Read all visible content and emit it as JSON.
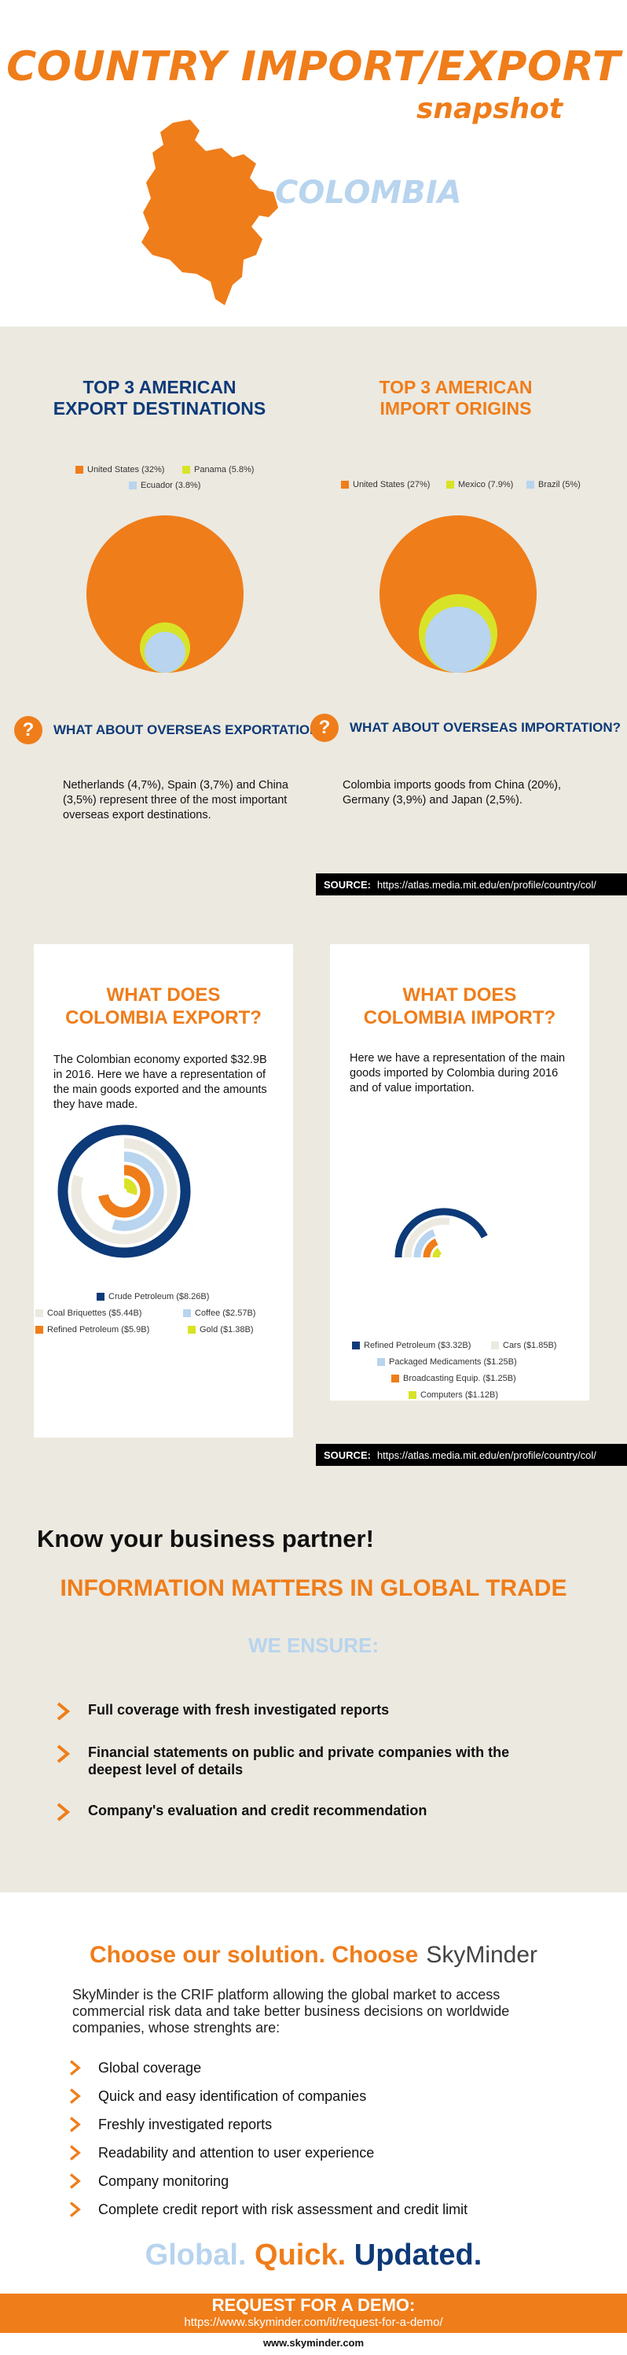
{
  "header": {
    "title": "COUNTRY IMPORT/EXPORT",
    "subtitle": "snapshot",
    "country": "COLOMBIA"
  },
  "export_destinations": {
    "title_line1": "TOP 3 AMERICAN",
    "title_line2": "EXPORT DESTINATIONS",
    "legend": [
      {
        "label": "United States (32%)",
        "color": "#ef7d1a"
      },
      {
        "label": "Panama (5.8%)",
        "color": "#d8e327"
      },
      {
        "label": "Ecuador (3.8%)",
        "color": "#b8d4ee"
      }
    ],
    "question": "WHAT ABOUT OVERSEAS EXPORTATION?",
    "note": "Netherlands (4,7%), Spain (3,7%) and China (3,5%) represent three of the most important overseas export destinations."
  },
  "import_origins": {
    "title_line1": "TOP 3 AMERICAN",
    "title_line2": "IMPORT ORIGINS",
    "legend": [
      {
        "label": "United States (27%)",
        "color": "#ef7d1a"
      },
      {
        "label": "Mexico (7.9%)",
        "color": "#d8e327"
      },
      {
        "label": "Brazil (5%)",
        "color": "#b8d4ee"
      }
    ],
    "question": "WHAT ABOUT OVERSEAS IMPORTATION?",
    "note": "Colombia imports goods from China (20%), Germany (3,9%) and Japan (2,5%)."
  },
  "source": {
    "label": "SOURCE:",
    "url": "https://atlas.media.mit.edu/en/profile/country/col/"
  },
  "export_card": {
    "title_line1": "WHAT DOES",
    "title_line2": "COLOMBIA EXPORT?",
    "text": "The Colombian economy exported $32.9B in 2016. Here we have a representation of the main goods exported and the amounts they have made.",
    "legend": [
      {
        "label": "Crude Petroleum ($8.26B)",
        "color": "#0d3a78"
      },
      {
        "label": "Coal Briquettes ($5.44B)",
        "color": "#ece9e0"
      },
      {
        "label": "Coffee ($2.57B)",
        "color": "#b8d4ee"
      },
      {
        "label": "Refined Petroleum ($5.9B)",
        "color": "#ef7d1a"
      },
      {
        "label": "Gold ($1.38B)",
        "color": "#d8e327"
      }
    ]
  },
  "import_card": {
    "title_line1": "WHAT DOES",
    "title_line2": "COLOMBIA IMPORT?",
    "text": "Here we have a representation of the main goods imported by Colombia during 2016 and of value importation.",
    "legend": [
      {
        "label": "Refined Petroleum ($3.32B)",
        "color": "#0d3a78"
      },
      {
        "label": "Cars ($1.85B)",
        "color": "#ece9e0"
      },
      {
        "label": "Packaged Medicaments ($1.25B)",
        "color": "#b8d4ee"
      },
      {
        "label": "Broadcasting Equip. ($1.25B)",
        "color": "#ef7d1a"
      },
      {
        "label": "Computers ($1.12B)",
        "color": "#d8e327"
      }
    ]
  },
  "partner": {
    "heading": "Know your business partner!",
    "subheading": "INFORMATION MATTERS IN GLOBAL TRADE",
    "ensure": "WE ENSURE:",
    "bullets": [
      "Full coverage with fresh investigated reports",
      "Financial statements on public and private companies with the deepest level of details",
      "Company's evaluation and credit recommendation"
    ]
  },
  "solution": {
    "heading": "Choose our solution. Choose",
    "brand": "SkyMinder",
    "paragraph": "SkyMinder is the CRIF platform allowing the global market to access commercial risk data and take better business decisions on worldwide companies, whose strenghts are:",
    "items": [
      "Global coverage",
      "Quick and easy identification of companies",
      "Freshly investigated reports",
      "Readability and attention to user experience",
      "Company monitoring",
      "Complete credit report with risk assessment and credit limit"
    ],
    "tagline": [
      "Global.",
      "Quick.",
      "Updated."
    ]
  },
  "demo": {
    "title": "REQUEST FOR A DEMO:",
    "url": "https://www.skyminder.com/it/request-for-a-demo/"
  },
  "footer": "www.skyminder.com",
  "colors": {
    "orange": "#ef7d1a",
    "navy": "#0d3a78",
    "light_blue": "#b8d4ee",
    "yellow": "#d8e327",
    "beige": "#ece9e0"
  }
}
